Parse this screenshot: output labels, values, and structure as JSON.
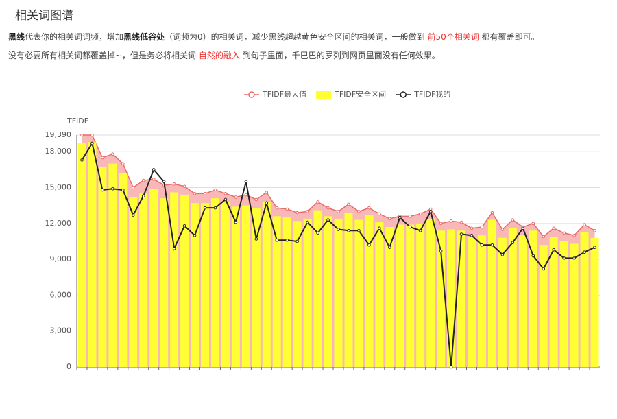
{
  "header": {
    "title": "相关词图谱"
  },
  "description": {
    "lines": [
      [
        {
          "text": "黑线",
          "style": "bold"
        },
        {
          "text": "代表你的相关词词频，增加"
        },
        {
          "text": "黑线低谷处",
          "style": "bold"
        },
        {
          "text": "（词频为0）的相关词，减少黑线超越黄色安全区间的相关词，一般做到 "
        },
        {
          "text": "前50个相关词",
          "style": "red"
        },
        {
          "text": " 都有覆盖即可。"
        }
      ],
      [
        {
          "text": "没有必要所有相关词都覆盖掉~，但是务必将相关词 "
        },
        {
          "text": "自然的融入",
          "style": "red"
        },
        {
          "text": " 到句子里面，千巴巴的罗列到网页里面没有任何效果。"
        }
      ]
    ]
  },
  "chart_data": {
    "type": "combo",
    "y_label": "TFIDF",
    "legend": "top",
    "grid": true,
    "categories": [
      null,
      null,
      null,
      null,
      null,
      null,
      null,
      null,
      null,
      null,
      null,
      null,
      null,
      null,
      null,
      null,
      null,
      null,
      null,
      null,
      null,
      null,
      null,
      null,
      null,
      null,
      null,
      null,
      null,
      null,
      null,
      null,
      null,
      null,
      null,
      null,
      null,
      null,
      null,
      null,
      null,
      null,
      null,
      null,
      null,
      null,
      null,
      null,
      null,
      null,
      null
    ],
    "ylim": [
      0,
      19390
    ],
    "yticks": [
      0,
      {
        "value": 3000,
        "label": "3,000"
      },
      {
        "value": 6000,
        "label": "6,000"
      },
      {
        "value": 9000,
        "label": "9,000"
      },
      {
        "value": 12000,
        "label": "12,000"
      },
      {
        "value": 15000,
        "label": "15,000"
      },
      {
        "value": 18000,
        "label": "18,000"
      },
      {
        "value": 19390,
        "label": "19,390"
      }
    ],
    "series": [
      {
        "name": "TFIDF最大值",
        "kind": "area",
        "color": "#e86a6a",
        "values": [
          19390,
          19390,
          17500,
          17800,
          17000,
          15000,
          15600,
          15700,
          15200,
          15300,
          15100,
          14500,
          14500,
          14800,
          14500,
          14200,
          14400,
          14000,
          14600,
          13300,
          13200,
          12900,
          13000,
          13800,
          13300,
          13000,
          13600,
          13000,
          13300,
          12800,
          12400,
          12600,
          12600,
          12800,
          13200,
          12000,
          12200,
          12100,
          11600,
          11700,
          12900,
          11500,
          12300,
          11700,
          12000,
          10900,
          11600,
          11200,
          11000,
          11900,
          11400
        ]
      },
      {
        "name": "TFIDF安全区间",
        "kind": "bar",
        "color": "#ffff33",
        "values": [
          18700,
          18800,
          16700,
          17000,
          16200,
          14200,
          14500,
          14900,
          14100,
          14600,
          14400,
          13700,
          13700,
          14100,
          13800,
          13400,
          13500,
          13300,
          13800,
          12600,
          12500,
          12200,
          12400,
          13100,
          12600,
          12400,
          12900,
          12300,
          12700,
          12100,
          11700,
          11900,
          11900,
          12000,
          12400,
          11400,
          11500,
          11400,
          10900,
          11000,
          12300,
          10800,
          11600,
          11000,
          11400,
          10200,
          10900,
          10500,
          10300,
          11300,
          10800
        ]
      },
      {
        "name": "TFIDF我的",
        "kind": "line",
        "color": "#222222",
        "values": [
          17300,
          18700,
          14800,
          14900,
          14800,
          12700,
          14300,
          16500,
          15500,
          9900,
          11800,
          11000,
          13300,
          13300,
          14000,
          12100,
          15500,
          10700,
          13700,
          10600,
          10600,
          10500,
          12100,
          11200,
          12300,
          11500,
          11400,
          11400,
          10200,
          11600,
          10000,
          12500,
          11700,
          11400,
          13000,
          9700,
          0,
          11100,
          11000,
          10200,
          10200,
          9400,
          10400,
          11600,
          9300,
          8200,
          9800,
          9100,
          9100,
          9600,
          10000
        ]
      }
    ]
  }
}
